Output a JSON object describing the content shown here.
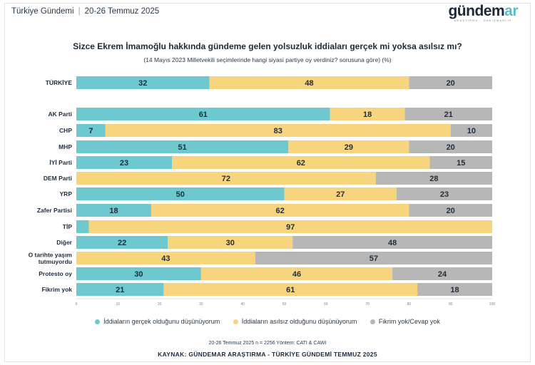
{
  "header": {
    "section": "Türkiye Gündemi",
    "date_range": "20-26 Temmuz 2025"
  },
  "logo": {
    "main": "gündem",
    "accent": "ar",
    "tagline": "ARAŞTIRMA · DANIŞMANLIK"
  },
  "colors": {
    "real": "#6ec8cf",
    "unfounded": "#f7d57e",
    "no_opinion": "#b7b7b7"
  },
  "chart_data": {
    "type": "bar",
    "orientation": "horizontal",
    "stacked": true,
    "title": "Sizce Ekrem İmamoğlu hakkında gündeme gelen yolsuzluk iddiaları gerçek mi yoksa asılsız mı?",
    "subtitle": "(14 Mayıs 2023 Milletvekili seçimlerinde hangi siyasi partiye oy verdiniz? sorusuna göre) (%)",
    "xlim": [
      0,
      100
    ],
    "x_ticks": [
      "0",
      "10",
      "20",
      "30",
      "40",
      "50",
      "60",
      "70",
      "80",
      "90",
      "100"
    ],
    "legend_position": "bottom",
    "categories": [
      "TÜRKİYE",
      "AK Parti",
      "CHP",
      "MHP",
      "İYİ Parti",
      "DEM Parti",
      "YRP",
      "Zafer Partisi",
      "TİP",
      "Diğer",
      "O tarihte yaşım tutmuyordu",
      "Protesto oy",
      "Fikrim yok"
    ],
    "series": [
      {
        "name": "İddiaların gerçek olduğunu düşünüyorum",
        "color": "#6ec8cf",
        "values": [
          32,
          61,
          7,
          51,
          23,
          0,
          50,
          18,
          3,
          22,
          0,
          30,
          21
        ]
      },
      {
        "name": "İddiaların asılsız olduğunu düşünüyorum",
        "color": "#f7d57e",
        "values": [
          48,
          18,
          83,
          29,
          62,
          72,
          27,
          62,
          97,
          30,
          43,
          46,
          61
        ]
      },
      {
        "name": "Fikrim yok/Cevap yok",
        "color": "#b7b7b7",
        "values": [
          20,
          21,
          10,
          20,
          15,
          28,
          23,
          20,
          0,
          48,
          57,
          24,
          18
        ]
      }
    ]
  },
  "footer": {
    "note": "20-26 Temmuz 2025 n = 2256 Yöntem: CATI & CAWI",
    "source": "KAYNAK: GÜNDEMAR ARAŞTIRMA - TÜRKİYE GÜNDEMİ TEMMUZ 2025"
  }
}
